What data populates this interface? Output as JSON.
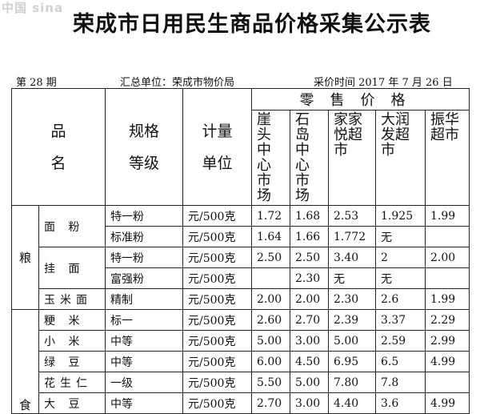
{
  "watermark": "中国 sina",
  "title": "荣成市日用民生商品价格采集公示表",
  "meta": {
    "issue": "第 28 期",
    "org": "汇总单位：荣成市物价局",
    "date": "采价时间  2017 年 7 月 26 日"
  },
  "header": {
    "product": "品",
    "product2": "名",
    "spec": "规格",
    "spec2": "等级",
    "unit": "计量",
    "unit2": "单位",
    "retail": "零售价格",
    "markets": [
      "崖头中心市场",
      "石岛中心市场",
      "家家悦超市",
      "大润发超市",
      "振华超市"
    ]
  },
  "categories": [
    "粮",
    "食"
  ],
  "rows": [
    {
      "name": "面  粉",
      "spec": "特一粉",
      "unit": "元/500克",
      "prices": [
        "1.72",
        "1.68",
        "2.53",
        "1.925",
        "1.99"
      ]
    },
    {
      "name": "",
      "spec": "标准粉",
      "unit": "元/500克",
      "prices": [
        "1.64",
        "1.66",
        "1.772",
        "无",
        ""
      ]
    },
    {
      "name": "挂    面",
      "spec": "特一粉",
      "unit": "元/500克",
      "prices": [
        "2.50",
        "2.50",
        "3.40",
        "2",
        "2.00"
      ]
    },
    {
      "name": "",
      "spec": "富强粉",
      "unit": "元/500克",
      "prices": [
        "",
        "2.30",
        "无",
        "无",
        ""
      ]
    },
    {
      "name": "玉米面",
      "spec": "精制",
      "unit": "元/500克",
      "prices": [
        "2.00",
        "2.00",
        "2.30",
        "2.6",
        "1.99"
      ]
    },
    {
      "name": "粳  米",
      "spec": "标一",
      "unit": "元/500克",
      "prices": [
        "2.60",
        "2.70",
        "2.39",
        "3.37",
        "2.29"
      ]
    },
    {
      "name": "小  米",
      "spec": "中等",
      "unit": "元/500克",
      "prices": [
        "5.00",
        "3.00",
        "5.00",
        "2.59",
        "2.99"
      ]
    },
    {
      "name": "绿  豆",
      "spec": "中等",
      "unit": "元/500克",
      "prices": [
        "6.00",
        "4.50",
        "6.95",
        "6.5",
        "4.99"
      ]
    },
    {
      "name": "花生仁",
      "spec": "一级",
      "unit": "元/500克",
      "prices": [
        "5.50",
        "5.00",
        "7.80",
        "7.8",
        ""
      ]
    },
    {
      "name": "大  豆",
      "spec": "中等",
      "unit": "元/500克",
      "prices": [
        "2.70",
        "3.00",
        "4.40",
        "3.6",
        "4.99"
      ]
    }
  ]
}
